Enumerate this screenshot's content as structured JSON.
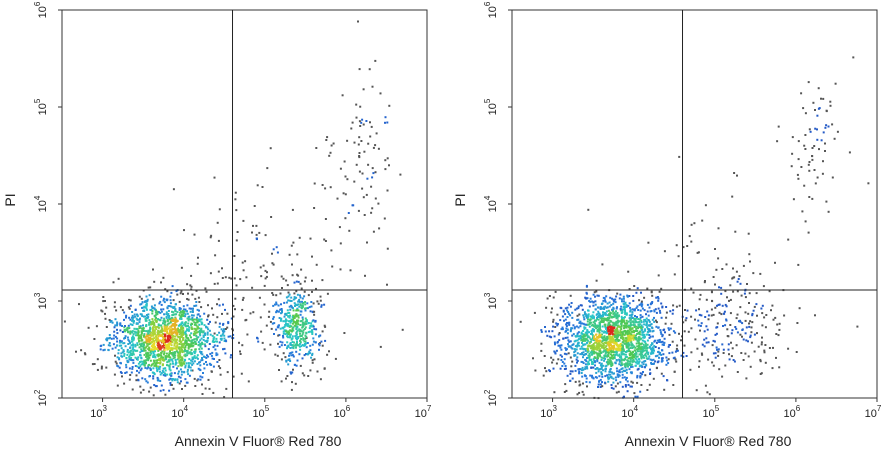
{
  "chart_data": [
    {
      "type": "scatter",
      "subtype": "flow-cytometry-density",
      "xlabel": "Annexin V Fluor® Red 780",
      "ylabel": "PI",
      "x_scale": "log",
      "y_scale": "log",
      "xlim": [
        316,
        10000000
      ],
      "ylim": [
        100,
        1000000
      ],
      "x_ticks": [
        {
          "base": "10",
          "exp": "3",
          "value": 1000
        },
        {
          "base": "10",
          "exp": "4",
          "value": 10000
        },
        {
          "base": "10",
          "exp": "5",
          "value": 100000
        },
        {
          "base": "10",
          "exp": "6",
          "value": 1000000
        },
        {
          "base": "10",
          "exp": "7",
          "value": 10000000
        }
      ],
      "y_ticks": [
        {
          "base": "10",
          "exp": "2",
          "value": 100
        },
        {
          "base": "10",
          "exp": "3",
          "value": 1000
        },
        {
          "base": "10",
          "exp": "4",
          "value": 10000
        },
        {
          "base": "10",
          "exp": "5",
          "value": 100000
        },
        {
          "base": "10",
          "exp": "6",
          "value": 1000000
        }
      ],
      "quadrant_gate": {
        "x": 40000,
        "y": 1300
      },
      "populations": [
        {
          "center": [
            6000,
            400
          ],
          "spread": [
            0.35,
            0.22
          ],
          "count": 1700,
          "role": "live"
        },
        {
          "center": [
            250000,
            550
          ],
          "spread": [
            0.15,
            0.22
          ],
          "count": 450,
          "role": "early-apoptotic"
        },
        {
          "center": [
            1500000,
            40000
          ],
          "spread": [
            0.22,
            0.45
          ],
          "count": 90,
          "role": "late-apoptotic"
        },
        {
          "center": [
            80000,
            2500
          ],
          "spread": [
            0.55,
            0.45
          ],
          "count": 140,
          "role": "scattered"
        }
      ]
    },
    {
      "type": "scatter",
      "subtype": "flow-cytometry-density",
      "xlabel": "Annexin V Fluor® Red 780",
      "ylabel": "PI",
      "x_scale": "log",
      "y_scale": "log",
      "xlim": [
        316,
        10000000
      ],
      "ylim": [
        100,
        1000000
      ],
      "x_ticks": [
        {
          "base": "10",
          "exp": "3",
          "value": 1000
        },
        {
          "base": "10",
          "exp": "4",
          "value": 10000
        },
        {
          "base": "10",
          "exp": "5",
          "value": 100000
        },
        {
          "base": "10",
          "exp": "6",
          "value": 1000000
        },
        {
          "base": "10",
          "exp": "7",
          "value": 10000000
        }
      ],
      "y_ticks": [
        {
          "base": "10",
          "exp": "2",
          "value": 100
        },
        {
          "base": "10",
          "exp": "3",
          "value": 1000
        },
        {
          "base": "10",
          "exp": "4",
          "value": 10000
        },
        {
          "base": "10",
          "exp": "5",
          "value": 100000
        },
        {
          "base": "10",
          "exp": "6",
          "value": 1000000
        }
      ],
      "quadrant_gate": {
        "x": 40000,
        "y": 1300
      },
      "populations": [
        {
          "center": [
            5500,
            400
          ],
          "spread": [
            0.35,
            0.22
          ],
          "count": 1900,
          "role": "live"
        },
        {
          "center": [
            150000,
            500
          ],
          "spread": [
            0.35,
            0.25
          ],
          "count": 220,
          "role": "early-apoptotic"
        },
        {
          "center": [
            1600000,
            40000
          ],
          "spread": [
            0.18,
            0.4
          ],
          "count": 70,
          "role": "late-apoptotic"
        },
        {
          "center": [
            100000,
            2000
          ],
          "spread": [
            0.6,
            0.5
          ],
          "count": 60,
          "role": "scattered"
        }
      ]
    }
  ]
}
